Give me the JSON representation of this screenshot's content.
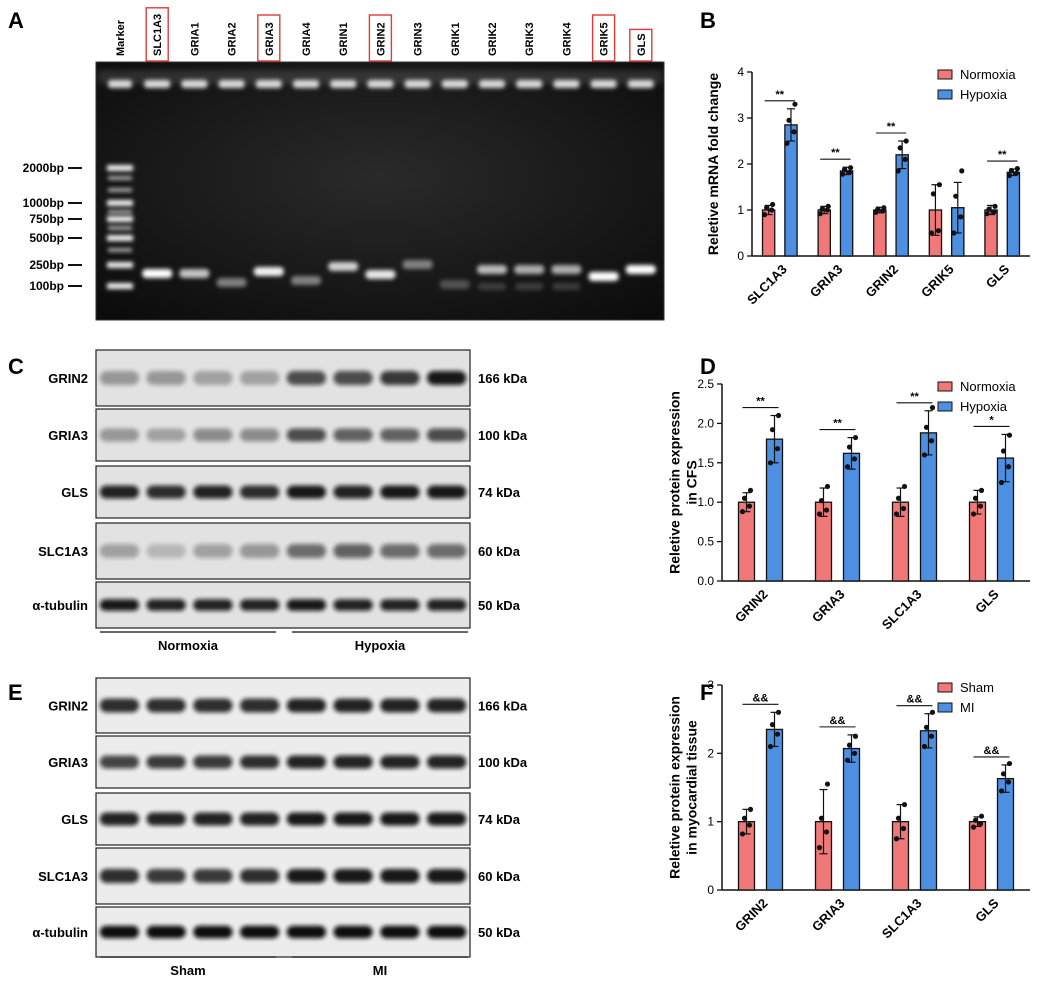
{
  "panels": {
    "A": "A",
    "B": "B",
    "C": "C",
    "D": "D",
    "E": "E",
    "F": "F"
  },
  "gel": {
    "lanes": [
      "Marker",
      "SLC1A3",
      "GRIA1",
      "GRIA2",
      "GRIA3",
      "GRIA4",
      "GRIN1",
      "GRIN2",
      "GRIN3",
      "GRIK1",
      "GRIK2",
      "GRIK3",
      "GRIK4",
      "GRIK5",
      "GLS"
    ],
    "highlighted": [
      "SLC1A3",
      "GRIA3",
      "GRIN2",
      "GRIK5",
      "GLS"
    ],
    "ladder": [
      "2000bp",
      "1000bp",
      "750bp",
      "500bp",
      "250bp",
      "100bp"
    ]
  },
  "blot_c": {
    "rows": [
      {
        "protein": "GRIN2",
        "size": "166 kDa"
      },
      {
        "protein": "GRIA3",
        "size": "100 kDa"
      },
      {
        "protein": "GLS",
        "size": "74 kDa"
      },
      {
        "protein": "SLC1A3",
        "size": "60 kDa"
      },
      {
        "protein": "α-tubulin",
        "size": "50 kDa"
      }
    ],
    "groups": [
      "Normoxia",
      "Hypoxia"
    ]
  },
  "blot_e": {
    "rows": [
      {
        "protein": "GRIN2",
        "size": "166 kDa"
      },
      {
        "protein": "GRIA3",
        "size": "100 kDa"
      },
      {
        "protein": "GLS",
        "size": "74 kDa"
      },
      {
        "protein": "SLC1A3",
        "size": "60 kDa"
      },
      {
        "protein": "α-tubulin",
        "size": "50 kDa"
      }
    ],
    "groups": [
      "Sham",
      "MI"
    ]
  },
  "colors": {
    "control": "#f07878",
    "treatment": "#4d8fe0",
    "edge": "#111111"
  },
  "chart_data": [
    {
      "panel": "B",
      "type": "bar",
      "ylabel": "Reletive mRNA fold change",
      "ylim": [
        0,
        4
      ],
      "yticks": [
        0,
        1,
        2,
        3,
        4
      ],
      "categories": [
        "SLC1A3",
        "GRIA3",
        "GRIN2",
        "GRIK5",
        "GLS"
      ],
      "series": [
        {
          "name": "Normoxia",
          "values": [
            1.0,
            1.0,
            1.0,
            1.0,
            1.0
          ],
          "err": [
            0.1,
            0.08,
            0.06,
            0.55,
            0.1
          ],
          "points": [
            [
              0.9,
              1.0,
              1.05,
              1.12
            ],
            [
              0.92,
              1.0,
              1.02,
              1.08
            ],
            [
              0.95,
              0.98,
              1.02,
              1.05
            ],
            [
              0.5,
              0.55,
              1.35,
              1.55
            ],
            [
              0.92,
              0.96,
              1.02,
              1.08
            ]
          ]
        },
        {
          "name": "Hypoxia",
          "values": [
            2.85,
            1.85,
            2.2,
            1.05,
            1.82
          ],
          "err": [
            0.35,
            0.08,
            0.3,
            0.55,
            0.07
          ],
          "points": [
            [
              2.45,
              2.7,
              2.95,
              3.3
            ],
            [
              1.78,
              1.82,
              1.88,
              1.92
            ],
            [
              1.85,
              2.1,
              2.35,
              2.5
            ],
            [
              0.5,
              0.85,
              1.3,
              1.85
            ],
            [
              1.75,
              1.8,
              1.86,
              1.9
            ]
          ]
        }
      ],
      "significance": [
        "**",
        "**",
        "**",
        "",
        "**"
      ]
    },
    {
      "panel": "D",
      "type": "bar",
      "ylabel": "Reletive protein expression\nin CFS",
      "ylim": [
        0,
        2.5
      ],
      "yticks": [
        0.0,
        0.5,
        1.0,
        1.5,
        2.0,
        2.5
      ],
      "categories": [
        "GRIN2",
        "GRIA3",
        "SLC1A3",
        "GLS"
      ],
      "series": [
        {
          "name": "Normoxia",
          "values": [
            1.0,
            1.0,
            1.0,
            1.0
          ],
          "err": [
            0.12,
            0.18,
            0.18,
            0.15
          ],
          "points": [
            [
              0.88,
              0.95,
              1.05,
              1.15
            ],
            [
              0.85,
              0.9,
              1.02,
              1.2
            ],
            [
              0.85,
              0.92,
              1.05,
              1.2
            ],
            [
              0.85,
              0.95,
              1.05,
              1.15
            ]
          ]
        },
        {
          "name": "Hypoxia",
          "values": [
            1.8,
            1.62,
            1.88,
            1.56
          ],
          "err": [
            0.3,
            0.2,
            0.28,
            0.3
          ],
          "points": [
            [
              1.5,
              1.68,
              1.92,
              2.1
            ],
            [
              1.45,
              1.55,
              1.7,
              1.82
            ],
            [
              1.6,
              1.78,
              1.95,
              2.2
            ],
            [
              1.25,
              1.45,
              1.65,
              1.85
            ]
          ]
        }
      ],
      "significance": [
        "**",
        "**",
        "**",
        "*"
      ]
    },
    {
      "panel": "F",
      "type": "bar",
      "ylabel": "Reletive protein expression\nin myocardial tissue",
      "ylim": [
        0,
        3
      ],
      "yticks": [
        0,
        1,
        2,
        3
      ],
      "categories": [
        "GRIN2",
        "GRIA3",
        "SLC1A3",
        "GLS"
      ],
      "series": [
        {
          "name": "Sham",
          "values": [
            1.0,
            1.0,
            1.0,
            1.0
          ],
          "err": [
            0.18,
            0.47,
            0.25,
            0.07
          ],
          "points": [
            [
              0.82,
              0.95,
              1.05,
              1.18
            ],
            [
              0.62,
              0.85,
              1.05,
              1.55
            ],
            [
              0.75,
              0.9,
              1.05,
              1.25
            ],
            [
              0.92,
              0.97,
              1.02,
              1.08
            ]
          ]
        },
        {
          "name": "MI",
          "values": [
            2.35,
            2.07,
            2.33,
            1.63
          ],
          "err": [
            0.25,
            0.2,
            0.25,
            0.2
          ],
          "points": [
            [
              2.1,
              2.28,
              2.42,
              2.6
            ],
            [
              1.9,
              2.0,
              2.12,
              2.25
            ],
            [
              2.1,
              2.25,
              2.38,
              2.6
            ],
            [
              1.45,
              1.58,
              1.7,
              1.85
            ]
          ]
        }
      ],
      "significance": [
        "&&",
        "&&",
        "&&",
        "&&"
      ]
    }
  ]
}
